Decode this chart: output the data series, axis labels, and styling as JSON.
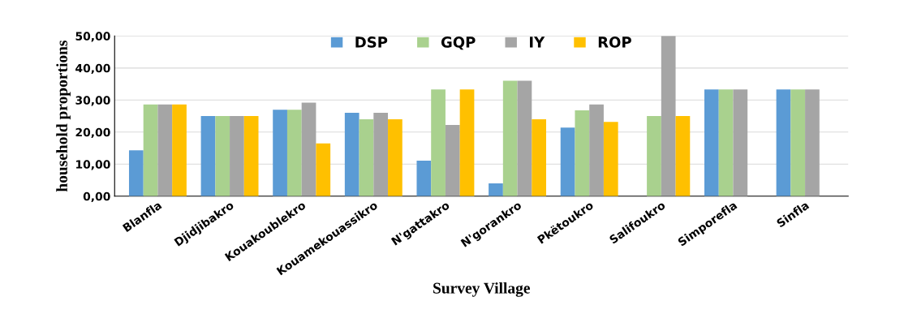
{
  "chart_data": {
    "type": "bar",
    "xlabel": "Survey Village",
    "ylabel": "household proportions",
    "categories": [
      "Blanfla",
      "Djidjibakro",
      "Kouakoublekro",
      "Kouamekouassikro",
      "N'gattakro",
      "N'gorankro",
      "Pkëtoukro",
      "Salifoukro",
      "Simporefla",
      "Sinfla"
    ],
    "series": [
      {
        "name": "DSP",
        "color": "#5b9bd5",
        "values": [
          14.3,
          25,
          27,
          26,
          11.1,
          4,
          21.4,
          0,
          33.3,
          33.3
        ]
      },
      {
        "name": "GQP",
        "color": "#a9d18e",
        "values": [
          28.6,
          25,
          27,
          24,
          33.3,
          36,
          26.8,
          25,
          33.3,
          33.3
        ]
      },
      {
        "name": "IY",
        "color": "#a5a5a5",
        "values": [
          28.6,
          25,
          29.2,
          26,
          22.2,
          36,
          28.6,
          50,
          33.3,
          33.3
        ]
      },
      {
        "name": "ROP",
        "color": "#ffc000",
        "values": [
          28.6,
          25,
          16.5,
          24,
          33.3,
          24,
          23.2,
          25,
          0,
          0
        ]
      }
    ],
    "ylim": [
      0,
      50
    ],
    "yticks": [
      {
        "value": 0,
        "label": "0,00"
      },
      {
        "value": 10,
        "label": "10,00"
      },
      {
        "value": 20,
        "label": "20,00"
      },
      {
        "value": 30,
        "label": "30,00"
      },
      {
        "value": 40,
        "label": "40,00"
      },
      {
        "value": 50,
        "label": "50,00"
      }
    ],
    "grid": "y",
    "legend": "top"
  }
}
